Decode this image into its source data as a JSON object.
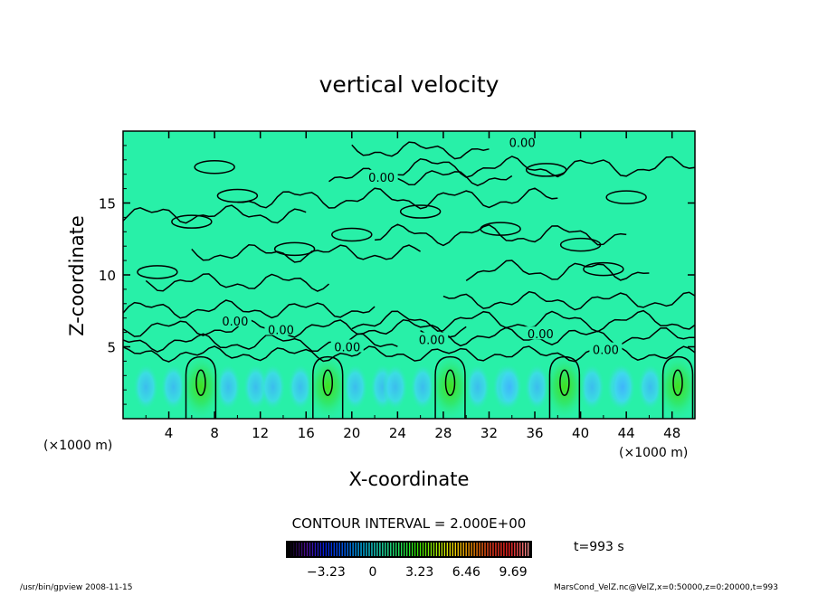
{
  "chart_data": {
    "type": "heatmap",
    "title": "vertical velocity",
    "xlabel": "X-coordinate",
    "ylabel": "Z-coordinate",
    "x_units": "(×1000 m)",
    "z_units": "(×1000 m)",
    "xlim": [
      0,
      50
    ],
    "ylim": [
      0,
      20
    ],
    "xticks": [
      4,
      8,
      12,
      16,
      20,
      24,
      28,
      32,
      36,
      40,
      44,
      48
    ],
    "yticks": [
      5,
      10,
      15
    ],
    "contour_interval_label": "CONTOUR INTERVAL = 2.000E+00",
    "contour_labels": [
      {
        "text": "0.00",
        "x": 34.9,
        "z": 19.2
      },
      {
        "text": "0.00",
        "x": 22.6,
        "z": 16.8
      },
      {
        "text": "0.00",
        "x": 9.8,
        "z": 6.8
      },
      {
        "text": "0.00",
        "x": 13.8,
        "z": 6.2
      },
      {
        "text": "0.00",
        "x": 19.6,
        "z": 5.0
      },
      {
        "text": "0.00",
        "x": 27.0,
        "z": 5.5
      },
      {
        "text": "0.00",
        "x": 36.5,
        "z": 5.9
      },
      {
        "text": "0.00",
        "x": 42.2,
        "z": 4.8
      }
    ],
    "updraft_cores_x": [
      6.8,
      17.9,
      28.6,
      38.6,
      48.5
    ],
    "colorbar": {
      "ticks": [
        "-3.23",
        "0",
        "3.23",
        "6.46",
        "9.69"
      ],
      "min": -6.0,
      "max": 11.0,
      "colors": [
        "#000000",
        "#5010a0",
        "#0020e0",
        "#0060ff",
        "#00c0ff",
        "#20f0c0",
        "#20f060",
        "#30e000",
        "#a0f000",
        "#ffe000",
        "#ff9000",
        "#ff4020",
        "#ff2020",
        "#ff9090"
      ]
    },
    "time_label": "t=993 s",
    "background_color": "#28f0a8"
  },
  "footer": {
    "left": "/usr/bin/gpview  2008-11-15",
    "right": "MarsCond_VelZ.nc@VelZ,x=0:50000,z=0:20000,t=993"
  }
}
